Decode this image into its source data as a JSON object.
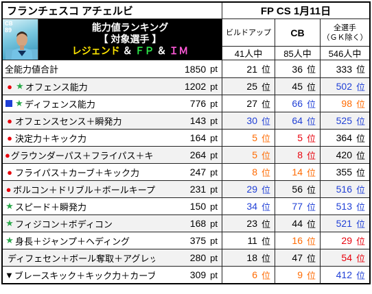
{
  "player": {
    "name": "フランチェスコ アチェルビ",
    "card_position": "CB",
    "card_rating": "89"
  },
  "title": {
    "line1": "能力値ランキング",
    "line2": "【 対象選手 】",
    "legend": "レジェンド",
    "amp": "＆",
    "fp": "ＦＰ",
    "im": "ＩＭ"
  },
  "date": "FP CS 1月11日",
  "columns": [
    {
      "label": "ビルドアップ",
      "count": "41人中"
    },
    {
      "label": "CB",
      "count": "85人中"
    },
    {
      "label": "全選手\n（ＧＫ除く）",
      "count": "546人中"
    }
  ],
  "units": {
    "pt": "pt",
    "rank": "位"
  },
  "colors": {
    "red": "#e8000b",
    "blue": "#1f3fd6",
    "orange": "#ff6a00",
    "star": "#2aa84a",
    "default": "#000000"
  },
  "rows": [
    {
      "mark": "",
      "label": "全能力値合計",
      "value": "1850",
      "ranks": [
        {
          "v": "21",
          "c": "default"
        },
        {
          "v": "36",
          "c": "default"
        },
        {
          "v": "333",
          "c": "default"
        }
      ]
    },
    {
      "mark": "●★",
      "label": "オフェンス能力",
      "value": "1202",
      "ranks": [
        {
          "v": "25",
          "c": "default"
        },
        {
          "v": "45",
          "c": "default"
        },
        {
          "v": "502",
          "c": "blue"
        }
      ]
    },
    {
      "mark": "■★",
      "label": "ディフェンス能力",
      "value": "776",
      "ranks": [
        {
          "v": "27",
          "c": "default"
        },
        {
          "v": "66",
          "c": "blue"
        },
        {
          "v": "98",
          "c": "orange"
        }
      ]
    },
    {
      "mark": "●",
      "label": "オフェンスセンス＋瞬発力",
      "value": "143",
      "ranks": [
        {
          "v": "30",
          "c": "blue"
        },
        {
          "v": "64",
          "c": "blue"
        },
        {
          "v": "525",
          "c": "blue"
        }
      ]
    },
    {
      "mark": "●",
      "label": "決定力＋キック力",
      "value": "164",
      "ranks": [
        {
          "v": "5",
          "c": "orange"
        },
        {
          "v": "5",
          "c": "red"
        },
        {
          "v": "364",
          "c": "default"
        }
      ]
    },
    {
      "mark": "●",
      "label": "グラウンダーパス＋フライパス＋キック力",
      "value": "264",
      "ranks": [
        {
          "v": "5",
          "c": "orange"
        },
        {
          "v": "8",
          "c": "red"
        },
        {
          "v": "420",
          "c": "default"
        }
      ]
    },
    {
      "mark": "●",
      "label": "フライパス＋カーブ＋キック力",
      "value": "247",
      "ranks": [
        {
          "v": "8",
          "c": "orange"
        },
        {
          "v": "14",
          "c": "orange"
        },
        {
          "v": "355",
          "c": "default"
        }
      ]
    },
    {
      "mark": "●",
      "label": "ボルコン＋ドリブル＋ボールキープ",
      "value": "231",
      "ranks": [
        {
          "v": "29",
          "c": "blue"
        },
        {
          "v": "56",
          "c": "default"
        },
        {
          "v": "516",
          "c": "blue"
        }
      ]
    },
    {
      "mark": "★",
      "label": "スピード＋瞬発力",
      "value": "150",
      "ranks": [
        {
          "v": "34",
          "c": "blue"
        },
        {
          "v": "77",
          "c": "blue"
        },
        {
          "v": "513",
          "c": "blue"
        }
      ]
    },
    {
      "mark": "★",
      "label": "フィジコン＋ボディコン",
      "value": "168",
      "ranks": [
        {
          "v": "23",
          "c": "default"
        },
        {
          "v": "44",
          "c": "default"
        },
        {
          "v": "521",
          "c": "blue"
        }
      ]
    },
    {
      "mark": "★",
      "label": "身長＋ジャンプ＋ヘディング",
      "value": "375",
      "ranks": [
        {
          "v": "11",
          "c": "default"
        },
        {
          "v": "16",
          "c": "orange"
        },
        {
          "v": "29",
          "c": "red"
        }
      ]
    },
    {
      "mark": "■",
      "label": "ディフェセン＋ボール奪取＋アグレッシブ",
      "value": "280",
      "ranks": [
        {
          "v": "18",
          "c": "default"
        },
        {
          "v": "47",
          "c": "default"
        },
        {
          "v": "54",
          "c": "red"
        }
      ]
    },
    {
      "mark": "▼",
      "label": "ブレースキック＋キック力＋カーブ＋決定力",
      "value": "309",
      "ranks": [
        {
          "v": "6",
          "c": "orange"
        },
        {
          "v": "9",
          "c": "orange"
        },
        {
          "v": "412",
          "c": "blue"
        }
      ]
    }
  ]
}
